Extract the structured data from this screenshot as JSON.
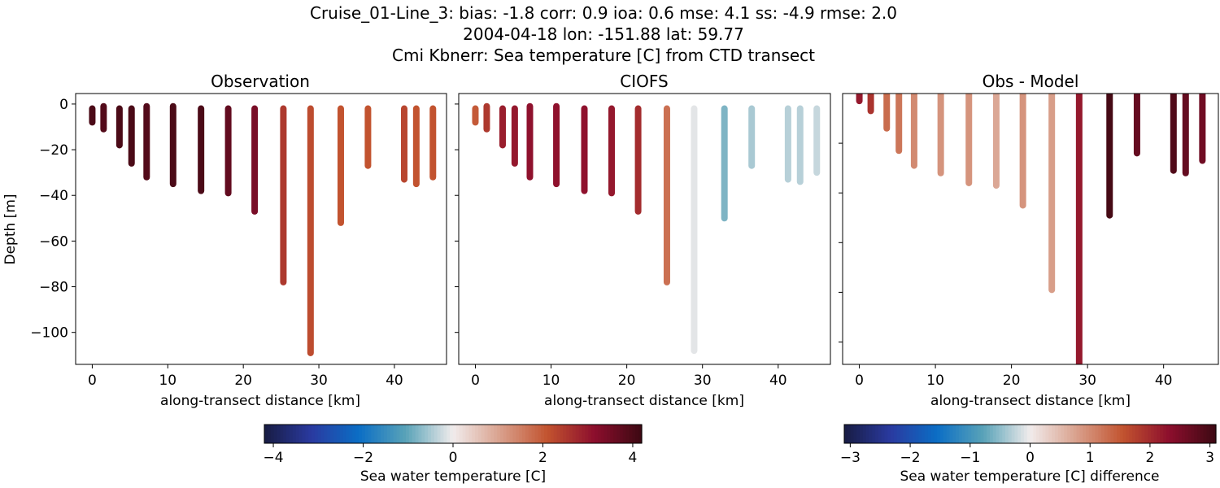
{
  "title": {
    "line1": "Cruise_01-Line_3: bias: -1.8  corr: 0.9  ioa: 0.6  mse: 4.1  ss: -4.9  rmse: 2.0",
    "line2": "2004-04-18 lon: -151.88 lat: 59.77",
    "line3": "Cmi Kbnerr: Sea temperature [C] from CTD transect"
  },
  "chart_data": [
    {
      "type": "scatter",
      "title": "Observation",
      "xlabel": "along-transect distance [km]",
      "ylabel": "Depth [m]",
      "xlim": [
        -2.2,
        46.9
      ],
      "ylim": [
        -114,
        4.6
      ],
      "xticks": [
        0,
        10,
        20,
        30,
        40
      ],
      "yticks": [
        0,
        -20,
        -40,
        -60,
        -80,
        -100
      ],
      "colorbar": "temp",
      "casts": [
        {
          "x": 0,
          "top": -2,
          "bottom": -8,
          "value": 4.0
        },
        {
          "x": 1.5,
          "top": -1,
          "bottom": -11,
          "value": 3.9
        },
        {
          "x": 3.6,
          "top": -2,
          "bottom": -18,
          "value": 4.0
        },
        {
          "x": 5.2,
          "top": -2,
          "bottom": -26,
          "value": 4.0
        },
        {
          "x": 7.2,
          "top": -1,
          "bottom": -32,
          "value": 3.9
        },
        {
          "x": 10.7,
          "top": -1,
          "bottom": -35,
          "value": 4.0
        },
        {
          "x": 14.4,
          "top": -2,
          "bottom": -38,
          "value": 4.0
        },
        {
          "x": 18.0,
          "top": -2,
          "bottom": -39,
          "value": 3.7
        },
        {
          "x": 21.5,
          "top": -2,
          "bottom": -47,
          "value": 3.4
        },
        {
          "x": 25.3,
          "top": -2,
          "bottom": -78,
          "value": 2.5
        },
        {
          "x": 28.9,
          "top": -2,
          "bottom": -109,
          "value": 2.2
        },
        {
          "x": 32.9,
          "top": -2,
          "bottom": -52,
          "value": 2.1
        },
        {
          "x": 36.5,
          "top": -2,
          "bottom": -27,
          "value": 2.1
        },
        {
          "x": 41.3,
          "top": -2,
          "bottom": -33,
          "value": 2.3
        },
        {
          "x": 42.9,
          "top": -2,
          "bottom": -35,
          "value": 2.1
        },
        {
          "x": 45.1,
          "top": -2,
          "bottom": -32,
          "value": 2.1
        }
      ]
    },
    {
      "type": "scatter",
      "title": "CIOFS",
      "xlabel": "along-transect distance [km]",
      "xlim": [
        -2.2,
        46.9
      ],
      "ylim": [
        -114,
        4.6
      ],
      "xticks": [
        0,
        10,
        20,
        30,
        40
      ],
      "yticks": [
        0,
        -20,
        -40,
        -60,
        -80,
        -100
      ],
      "colorbar": "temp",
      "casts": [
        {
          "x": 0,
          "top": -2,
          "bottom": -8,
          "value": 2.0
        },
        {
          "x": 1.5,
          "top": -1,
          "bottom": -11,
          "value": 2.5
        },
        {
          "x": 3.6,
          "top": -2,
          "bottom": -18,
          "value": 2.9
        },
        {
          "x": 5.2,
          "top": -2,
          "bottom": -26,
          "value": 3.0
        },
        {
          "x": 7.2,
          "top": -1,
          "bottom": -32,
          "value": 3.1
        },
        {
          "x": 10.7,
          "top": -1,
          "bottom": -35,
          "value": 3.1
        },
        {
          "x": 14.4,
          "top": -2,
          "bottom": -38,
          "value": 3.1
        },
        {
          "x": 18.0,
          "top": -2,
          "bottom": -39,
          "value": 3.0
        },
        {
          "x": 21.5,
          "top": -2,
          "bottom": -47,
          "value": 2.7
        },
        {
          "x": 25.3,
          "top": -2,
          "bottom": -78,
          "value": 1.7
        },
        {
          "x": 28.9,
          "top": -2,
          "bottom": -108,
          "value": -0.1
        },
        {
          "x": 32.9,
          "top": -2,
          "bottom": -50,
          "value": -0.8
        },
        {
          "x": 36.5,
          "top": -2,
          "bottom": -27,
          "value": -0.5
        },
        {
          "x": 41.3,
          "top": -2,
          "bottom": -33,
          "value": -0.4
        },
        {
          "x": 42.9,
          "top": -2,
          "bottom": -34,
          "value": -0.4
        },
        {
          "x": 45.1,
          "top": -2,
          "bottom": -30,
          "value": -0.3
        }
      ]
    },
    {
      "type": "scatter",
      "title": "Obs - Model",
      "xlabel": "along-transect distance [km]",
      "xlim": [
        -2.2,
        47.2
      ],
      "ylim": [
        -109,
        0
      ],
      "xticks": [
        0,
        10,
        20,
        30,
        40
      ],
      "yticks": [
        -20,
        -40,
        -60,
        -80,
        -100
      ],
      "colorbar": "diff",
      "casts": [
        {
          "x": 0,
          "top": 0,
          "bottom": -3,
          "value": 2.2
        },
        {
          "x": 1.5,
          "top": 0,
          "bottom": -7,
          "value": 1.9
        },
        {
          "x": 3.6,
          "top": 0,
          "bottom": -14,
          "value": 1.3
        },
        {
          "x": 5.2,
          "top": 0,
          "bottom": -23,
          "value": 1.2
        },
        {
          "x": 7.2,
          "top": 0,
          "bottom": -29,
          "value": 1.0
        },
        {
          "x": 10.7,
          "top": 0,
          "bottom": -32,
          "value": 0.9
        },
        {
          "x": 14.4,
          "top": 0,
          "bottom": -36,
          "value": 0.9
        },
        {
          "x": 18.0,
          "top": 0,
          "bottom": -37,
          "value": 0.7
        },
        {
          "x": 21.5,
          "top": 0,
          "bottom": -45,
          "value": 0.9
        },
        {
          "x": 25.3,
          "top": 0,
          "bottom": -79,
          "value": 0.8
        },
        {
          "x": 28.9,
          "top": 0,
          "bottom": -112,
          "value": 2.2
        },
        {
          "x": 32.9,
          "top": 0,
          "bottom": -49,
          "value": 3.0
        },
        {
          "x": 36.5,
          "top": 0,
          "bottom": -24,
          "value": 2.7
        },
        {
          "x": 41.3,
          "top": 0,
          "bottom": -31,
          "value": 2.9
        },
        {
          "x": 42.9,
          "top": 0,
          "bottom": -32,
          "value": 2.7
        },
        {
          "x": 45.1,
          "top": 0,
          "bottom": -27,
          "value": 2.6
        }
      ]
    }
  ],
  "colorbars": {
    "temp": {
      "label": "Sea water temperature [C]",
      "range": [
        -4.2,
        4.2
      ],
      "ticks": [
        -4,
        -2,
        0,
        2,
        4
      ]
    },
    "diff": {
      "label": "Sea water temperature [C] difference",
      "range": [
        -3.1,
        3.1
      ],
      "ticks": [
        -3,
        -2,
        -1,
        0,
        1,
        2,
        3
      ]
    }
  },
  "colormap": [
    "#181c43",
    "#2a3aa0",
    "#0b6ec5",
    "#5aa3b8",
    "#f1ecec",
    "#d9a08c",
    "#c2532f",
    "#8c0e2d",
    "#3c0912"
  ]
}
